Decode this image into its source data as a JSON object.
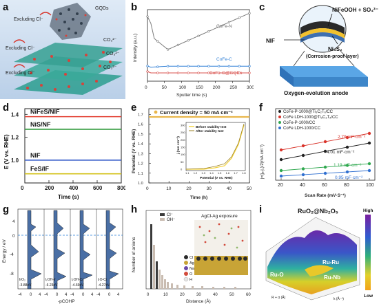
{
  "panel_tags": [
    "a",
    "b",
    "c",
    "d",
    "e",
    "f",
    "g",
    "h",
    "i"
  ],
  "panel_a": {
    "labels": [
      "Excluding Cl⁻",
      "Excluding Cl⁻",
      "Excluding Cl⁻",
      "GQDs",
      "CO₃²⁻",
      "CO₃²⁻",
      "CO₃²⁻"
    ]
  },
  "panel_b": {
    "ylabel": "Intensity (a.u.)",
    "xlabel": "Sputter time (s)",
    "xticks": [
      "0",
      "50",
      "100",
      "150",
      "200",
      "250",
      "300"
    ],
    "legend": [
      "CoFe-N",
      "CoFe-C",
      "CoFe-C@GQDs"
    ],
    "colors": [
      "#7a7a7a",
      "#2f7fd6",
      "#d9534f"
    ]
  },
  "panel_c": {
    "top_label": "NiFeOOH + SO₄²⁻",
    "nif_label": "NIF",
    "ni3s2_label": "Ni₃S₂",
    "layer_label": "(Corrosion-proof layer)",
    "bottom_label": "Oxygen-evolution anode"
  },
  "panel_d": {
    "ylabel": "E (V vs. RHE)",
    "xlabel": "Time (s)",
    "xticks": [
      "0",
      "200",
      "400",
      "600",
      "800"
    ],
    "yticks": [
      "1.0",
      "1.2",
      "1.4"
    ],
    "series": [
      {
        "name": "NiFeS/NIF",
        "value": 1.38,
        "color": "#e23b2e"
      },
      {
        "name": "NiS/NF",
        "value": 1.27,
        "color": "#2f9a3a"
      },
      {
        "name": "NIF",
        "value": 1.0,
        "color": "#2f56c8"
      },
      {
        "name": "FeS/IF",
        "value": 0.88,
        "color": "#d4c21a"
      }
    ]
  },
  "panel_e": {
    "annotation": "Current density = 50 mA cm⁻²",
    "ylabel": "Potential (V vs. RHE)",
    "xlabel": "Time (h)",
    "xticks": [
      "0",
      "10",
      "20",
      "30",
      "40",
      "50"
    ],
    "yticks": [
      "1.0",
      "1.1",
      "1.2",
      "1.3",
      "1.4",
      "1.5",
      "1.6",
      "1.7"
    ],
    "inset": {
      "legend": [
        "Before stability test",
        "After stability test"
      ],
      "xlabel": "Potential (V vs. RHE)",
      "ylabel": "j (mA cm⁻²)",
      "xticks": [
        "1.1",
        "1.2",
        "1.3",
        "1.4",
        "1.5",
        "1.6",
        "1.7",
        "1.8"
      ],
      "yticks": [
        "0",
        "50",
        "100",
        "150",
        "200",
        "250",
        "300"
      ]
    }
  },
  "panel_f": {
    "legend": [
      "CoFe-P-1000@Ti₃C₂Tₓ/CC",
      "CoFe LDH-1000@Ti₃C₂Tₓ/CC",
      "CoFe-P-1000/CC",
      "CoFe LDH-1000/CC"
    ],
    "colors": [
      "#222222",
      "#d9342b",
      "#2fa84f",
      "#2f6fd0"
    ],
    "annotations": [
      "2.79 mF·cm⁻²",
      "4.01 mF·cm⁻²",
      "1.19 mF·cm⁻²",
      "0.95 mF·cm⁻²"
    ],
    "ylabel": "j=(jₐ-j꜀)/2(mA·cm⁻²)",
    "xlabel": "Scan Rate (mV·S⁻¹)",
    "xticks": [
      "20",
      "40",
      "60",
      "80",
      "100"
    ]
  },
  "panel_g": {
    "ylabel": "Energy / eV",
    "xlabel": "-pCOHP",
    "yticks": [
      "4",
      "0",
      "-4",
      "-8"
    ],
    "labels": [
      "IrO₂",
      "IᵣOH-Ir",
      "IᵣOH-Cr",
      "IᵣO-Cr"
    ],
    "values": [
      "-3.88eV",
      "-6.23eV",
      "-4.69eV",
      "-4.27eV"
    ],
    "xtick_labels": [
      "-4",
      "0",
      "4",
      "-4",
      "0",
      "4",
      "-4",
      "0",
      "4",
      "-4",
      "0",
      "4"
    ]
  },
  "panel_h": {
    "title": "AgCl-Ag exposure",
    "legend": [
      "Cl⁻",
      "OH⁻"
    ],
    "ylabel": "Number of anions",
    "xlabel": "Distance (Å)",
    "xticks": [
      "0",
      "10",
      "20",
      "30",
      "40",
      "50",
      "60"
    ],
    "atoms": [
      "Cl",
      "Ag",
      "Na",
      "O",
      "H"
    ]
  },
  "panel_i": {
    "title": "RuO₂@Nb₂O₅",
    "colorbar": [
      "High",
      "Low"
    ],
    "labels": [
      "Ru-Ru",
      "Ru-O",
      "Ru-Nb"
    ],
    "xlabel": "k (Å⁻¹)",
    "ylabel": "R + α (Å)"
  }
}
